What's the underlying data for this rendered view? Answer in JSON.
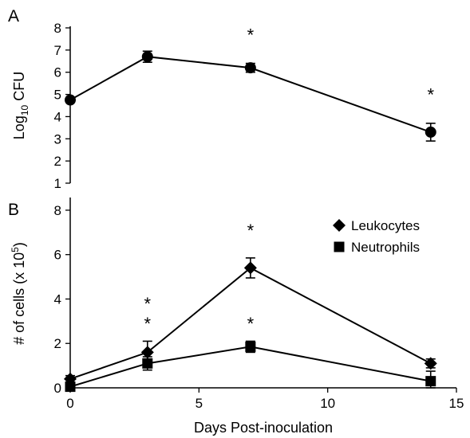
{
  "chart_data": [
    {
      "panel": "A",
      "type": "line",
      "ylabel_main": "Log",
      "ylabel_sub": "10",
      "ylabel_tail": " CFU",
      "xlabel": "Days Post-inoculation",
      "ylim": [
        1,
        8
      ],
      "yticks": [
        1,
        2,
        3,
        4,
        5,
        6,
        7,
        8
      ],
      "xlim": [
        0,
        15
      ],
      "xticks": [
        0,
        5,
        10,
        15
      ],
      "series": [
        {
          "marker": "circle",
          "x": [
            0,
            3,
            7,
            14
          ],
          "y": [
            4.75,
            6.7,
            6.2,
            3.3
          ],
          "err": [
            0.1,
            0.25,
            0.2,
            0.4
          ]
        }
      ],
      "annotations": [
        {
          "text": "*",
          "x": 7,
          "y": 7.7
        },
        {
          "text": "*",
          "x": 14,
          "y": 5.0
        }
      ]
    },
    {
      "panel": "B",
      "type": "line",
      "ylabel_main": "# of cells (x 10",
      "ylabel_sup": "5",
      "ylabel_tail": ")",
      "xlabel": "Days Post-inoculation",
      "ylim": [
        0,
        8.5
      ],
      "yticks": [
        0,
        2,
        4,
        6,
        8
      ],
      "xlim": [
        0,
        15
      ],
      "xticks": [
        0,
        5,
        10,
        15
      ],
      "series": [
        {
          "name": "Leukocytes",
          "marker": "diamond",
          "x": [
            0,
            3,
            7,
            14
          ],
          "y": [
            0.4,
            1.6,
            5.4,
            1.1
          ],
          "err": [
            0.15,
            0.5,
            0.45,
            0.2
          ]
        },
        {
          "name": "Neutrophils",
          "marker": "square",
          "x": [
            0,
            3,
            7,
            14
          ],
          "y": [
            0.05,
            1.1,
            1.85,
            0.3
          ],
          "err": [
            0.05,
            0.3,
            0.25,
            0.45
          ]
        }
      ],
      "annotations": [
        {
          "text": "*",
          "x": 7,
          "y": 7.1
        },
        {
          "text": "*",
          "x": 3,
          "y": 3.8
        },
        {
          "text": "*",
          "x": 3,
          "y": 2.9
        },
        {
          "text": "*",
          "x": 7,
          "y": 2.9
        }
      ],
      "legend": "top-right"
    }
  ]
}
